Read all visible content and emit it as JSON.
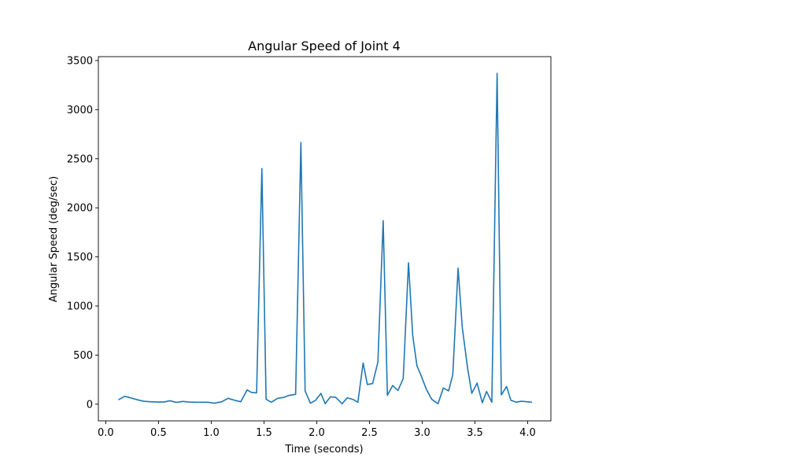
{
  "chart_data": {
    "type": "line",
    "title": "Angular Speed of Joint 4",
    "xlabel": "Time (seconds)",
    "ylabel": "Angular Speed (deg/sec)",
    "xlim": [
      -0.07,
      4.22
    ],
    "ylim": [
      -170,
      3540
    ],
    "x_ticks": [
      0.0,
      0.5,
      1.0,
      1.5,
      2.0,
      2.5,
      3.0,
      3.5,
      4.0
    ],
    "x_tick_labels": [
      "0.0",
      "0.5",
      "1.0",
      "1.5",
      "2.0",
      "2.5",
      "3.0",
      "3.5",
      "4.0"
    ],
    "y_ticks": [
      0,
      500,
      1000,
      1500,
      2000,
      2500,
      3000,
      3500
    ],
    "y_tick_labels": [
      "0",
      "500",
      "1000",
      "1500",
      "2000",
      "2500",
      "3000",
      "3500"
    ],
    "grid": false,
    "series": [
      {
        "color": "#1f77b4",
        "x": [
          0.12,
          0.18,
          0.25,
          0.3,
          0.36,
          0.42,
          0.49,
          0.55,
          0.61,
          0.67,
          0.73,
          0.79,
          0.85,
          0.91,
          0.97,
          1.03,
          1.1,
          1.16,
          1.22,
          1.28,
          1.34,
          1.38,
          1.43,
          1.48,
          1.52,
          1.57,
          1.63,
          1.69,
          1.74,
          1.8,
          1.85,
          1.89,
          1.94,
          1.99,
          2.04,
          2.08,
          2.13,
          2.18,
          2.24,
          2.29,
          2.35,
          2.39,
          2.44,
          2.48,
          2.53,
          2.58,
          2.63,
          2.67,
          2.72,
          2.77,
          2.82,
          2.87,
          2.91,
          2.95,
          2.99,
          3.04,
          3.09,
          3.15,
          3.2,
          3.25,
          3.29,
          3.34,
          3.38,
          3.43,
          3.47,
          3.52,
          3.57,
          3.61,
          3.66,
          3.71,
          3.75,
          3.8,
          3.84,
          3.89,
          3.94,
          3.99,
          4.04
        ],
        "y": [
          45,
          80,
          60,
          45,
          30,
          25,
          22,
          22,
          35,
          18,
          28,
          22,
          20,
          20,
          20,
          10,
          25,
          60,
          40,
          25,
          145,
          120,
          115,
          2400,
          50,
          20,
          60,
          70,
          90,
          100,
          2665,
          135,
          10,
          40,
          110,
          5,
          75,
          70,
          5,
          65,
          45,
          20,
          420,
          200,
          210,
          430,
          1870,
          90,
          190,
          140,
          260,
          1440,
          700,
          390,
          290,
          150,
          50,
          5,
          165,
          135,
          300,
          1385,
          780,
          370,
          110,
          215,
          15,
          130,
          20,
          3370,
          95,
          180,
          40,
          20,
          30,
          25,
          20
        ]
      }
    ]
  }
}
